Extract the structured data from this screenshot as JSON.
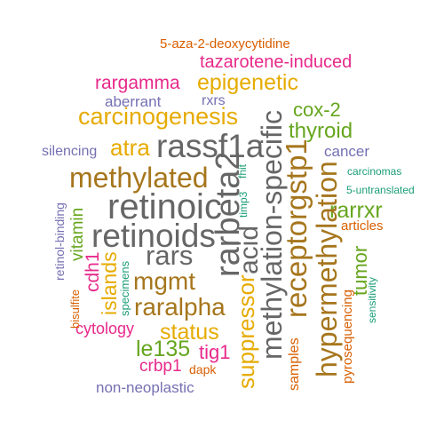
{
  "palette": {
    "orange": "#D95F02",
    "magenta": "#E7298A",
    "gold": "#E6AB02",
    "purple": "#7570B3",
    "olive": "#66A61E",
    "brown": "#A6761D",
    "gray": "#666666",
    "teal": "#1B9E77"
  },
  "words": [
    {
      "id": "w1",
      "text": "5-aza-2-deoxycytidine",
      "color": "#D95F02"
    },
    {
      "id": "w2",
      "text": "tazarotene-induced",
      "color": "#E7298A"
    },
    {
      "id": "w3",
      "text": "rargamma",
      "color": "#E7298A"
    },
    {
      "id": "w4",
      "text": "epigenetic",
      "color": "#E6AB02"
    },
    {
      "id": "w5",
      "text": "aberrant",
      "color": "#7570B3"
    },
    {
      "id": "w6",
      "text": "rxrs",
      "color": "#7570B3"
    },
    {
      "id": "w7",
      "text": "carcinogenesis",
      "color": "#E6AB02"
    },
    {
      "id": "w8",
      "text": "cox-2",
      "color": "#66A61E"
    },
    {
      "id": "w9",
      "text": "thyroid",
      "color": "#66A61E"
    },
    {
      "id": "w10",
      "text": "silencing",
      "color": "#7570B3"
    },
    {
      "id": "w11",
      "text": "atra",
      "color": "#E6AB02"
    },
    {
      "id": "w12",
      "text": "rassf1a",
      "color": "#666666"
    },
    {
      "id": "w13",
      "text": "cancer",
      "color": "#7570B3"
    },
    {
      "id": "w14",
      "text": "methylated",
      "color": "#A6761D"
    },
    {
      "id": "w15",
      "text": "fhit",
      "color": "#1B9E77"
    },
    {
      "id": "w16",
      "text": "carcinomas",
      "color": "#1B9E77"
    },
    {
      "id": "w17",
      "text": "5-untranslated",
      "color": "#1B9E77"
    },
    {
      "id": "w18",
      "text": "retinoic",
      "color": "#666666"
    },
    {
      "id": "w19",
      "text": "rarbeta2",
      "color": "#666666"
    },
    {
      "id": "w20",
      "text": "timp3",
      "color": "#1B9E77"
    },
    {
      "id": "w21",
      "text": "methylation-specific",
      "color": "#666666"
    },
    {
      "id": "w22",
      "text": "receptorgstp1",
      "color": "#A6761D"
    },
    {
      "id": "w23",
      "text": "hypermethylation",
      "color": "#A6761D"
    },
    {
      "id": "w24",
      "text": "rarrxr",
      "color": "#66A61E"
    },
    {
      "id": "w25",
      "text": "articles",
      "color": "#D95F02"
    },
    {
      "id": "w26",
      "text": "retinol-binding",
      "color": "#7570B3"
    },
    {
      "id": "w27",
      "text": "vitamin",
      "color": "#66A61E"
    },
    {
      "id": "w28",
      "text": "retinoids",
      "color": "#666666"
    },
    {
      "id": "w29",
      "text": "acid",
      "color": "#666666"
    },
    {
      "id": "w30",
      "text": "tumor",
      "color": "#66A61E"
    },
    {
      "id": "w31",
      "text": "rars",
      "color": "#666666"
    },
    {
      "id": "w32",
      "text": "cdh1",
      "color": "#E7298A"
    },
    {
      "id": "w33",
      "text": "islands",
      "color": "#E6AB02"
    },
    {
      "id": "w34",
      "text": "specimens",
      "color": "#1B9E77"
    },
    {
      "id": "w35",
      "text": "mgmt",
      "color": "#A6761D"
    },
    {
      "id": "w36",
      "text": "sensitivity",
      "color": "#1B9E77"
    },
    {
      "id": "w37",
      "text": "bisulfite",
      "color": "#D95F02"
    },
    {
      "id": "w38",
      "text": "raralpha",
      "color": "#A6761D"
    },
    {
      "id": "w39",
      "text": "suppressor",
      "color": "#E6AB02"
    },
    {
      "id": "w40",
      "text": "pyrosequencing",
      "color": "#D95F02"
    },
    {
      "id": "w41",
      "text": "cytology",
      "color": "#E7298A"
    },
    {
      "id": "w42",
      "text": "status",
      "color": "#E6AB02"
    },
    {
      "id": "w43",
      "text": "le135",
      "color": "#66A61E"
    },
    {
      "id": "w44",
      "text": "tig1",
      "color": "#E7298A"
    },
    {
      "id": "w45",
      "text": "samples",
      "color": "#D95F02"
    },
    {
      "id": "w46",
      "text": "crbp1",
      "color": "#E7298A"
    },
    {
      "id": "w47",
      "text": "dapk",
      "color": "#D95F02"
    },
    {
      "id": "w48",
      "text": "non-neoplastic",
      "color": "#7570B3"
    }
  ]
}
